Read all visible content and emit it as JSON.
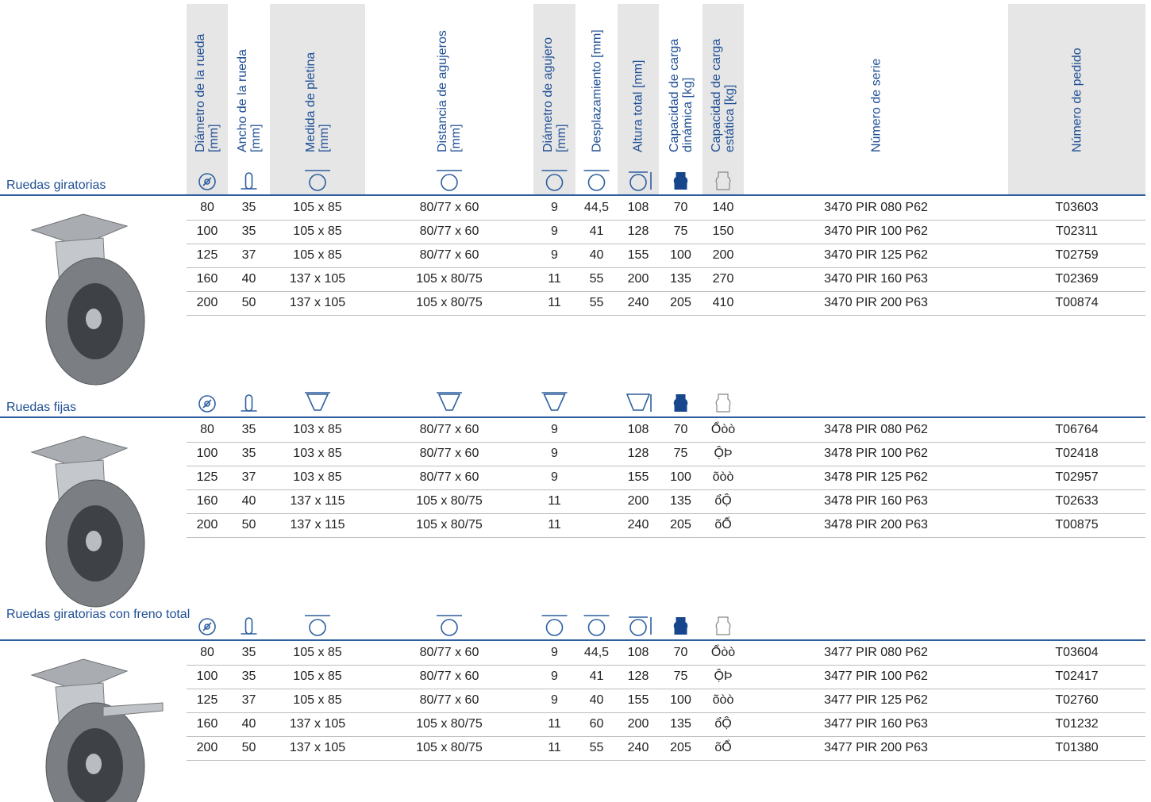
{
  "columns": [
    [
      "Diámetro de la rueda",
      "[mm]"
    ],
    [
      "Ancho de la rueda",
      "[mm]"
    ],
    [
      "Medida de pletina",
      "[mm]"
    ],
    [
      "Distancia de agujeros",
      "[mm]"
    ],
    [
      "Diámetro de agujero",
      "[mm]"
    ],
    [
      "Desplazamiento [mm]"
    ],
    [
      "Altura total [mm]"
    ],
    [
      "Capacidad de carga",
      "dinámica [kg]"
    ],
    [
      "Capacidad de carga",
      "estática [kg]"
    ],
    [
      "Número de serie"
    ],
    [
      "Número de pedido"
    ]
  ],
  "sections": [
    {
      "title": "Ruedas giratorias",
      "rows": [
        [
          "80",
          "35",
          "105 x 85",
          "80/77 x 60",
          "9",
          "44,5",
          "108",
          "70",
          "140",
          "3470 PIR 080 P62",
          "T03603"
        ],
        [
          "100",
          "35",
          "105 x 85",
          "80/77 x 60",
          "9",
          "41",
          "128",
          "75",
          "150",
          "3470 PIR 100 P62",
          "T02311"
        ],
        [
          "125",
          "37",
          "105 x 85",
          "80/77 x 60",
          "9",
          "40",
          "155",
          "100",
          "200",
          "3470 PIR 125 P62",
          "T02759"
        ],
        [
          "160",
          "40",
          "137 x 105",
          "105 x 80/75",
          "11",
          "55",
          "200",
          "135",
          "270",
          "3470 PIR 160 P63",
          "T02369"
        ],
        [
          "200",
          "50",
          "137 x 105",
          "105 x 80/75",
          "11",
          "55",
          "240",
          "205",
          "410",
          "3470 PIR 200 P63",
          "T00874"
        ]
      ]
    },
    {
      "title": "Ruedas fijas",
      "rows": [
        [
          "80",
          "35",
          "103 x 85",
          "80/77 x 60",
          "9",
          null,
          "108",
          "70",
          "Ổòò",
          "3478 PIR 080 P62",
          "T06764"
        ],
        [
          "100",
          "35",
          "103 x 85",
          "80/77 x 60",
          "9",
          null,
          "128",
          "75",
          "ỘÞ",
          "3478 PIR 100 P62",
          "T02418"
        ],
        [
          "125",
          "37",
          "103 x 85",
          "80/77 x 60",
          "9",
          null,
          "155",
          "100",
          "õòò",
          "3478 PIR 125 P62",
          "T02957"
        ],
        [
          "160",
          "40",
          "137 x 115",
          "105 x 80/75",
          "11",
          null,
          "200",
          "135",
          "ổỘ",
          "3478 PIR 160 P63",
          "T02633"
        ],
        [
          "200",
          "50",
          "137 x 115",
          "105 x 80/75",
          "11",
          null,
          "240",
          "205",
          "õỔ",
          "3478 PIR 200 P63",
          "T00875"
        ]
      ]
    },
    {
      "title": "Ruedas giratorias con freno total",
      "rows": [
        [
          "80",
          "35",
          "105 x 85",
          "80/77 x 60",
          "9",
          "44,5",
          "108",
          "70",
          "Ổòò",
          "3477 PIR 080 P62",
          "T03604"
        ],
        [
          "100",
          "35",
          "105 x 85",
          "80/77 x 60",
          "9",
          "41",
          "128",
          "75",
          "ỘÞ",
          "3477 PIR 100 P62",
          "T02417"
        ],
        [
          "125",
          "37",
          "105 x 85",
          "80/77 x 60",
          "9",
          "40",
          "155",
          "100",
          "õòò",
          "3477 PIR 125 P62",
          "T02760"
        ],
        [
          "160",
          "40",
          "137 x 105",
          "105 x 80/75",
          "11",
          "60",
          "200",
          "135",
          "ổỘ",
          "3477 PIR 160 P63",
          "T01232"
        ],
        [
          "200",
          "50",
          "137 x 105",
          "105 x 80/75",
          "11",
          "55",
          "240",
          "205",
          "õỔ",
          "3477 PIR 200 P63",
          "T01380"
        ]
      ]
    }
  ]
}
